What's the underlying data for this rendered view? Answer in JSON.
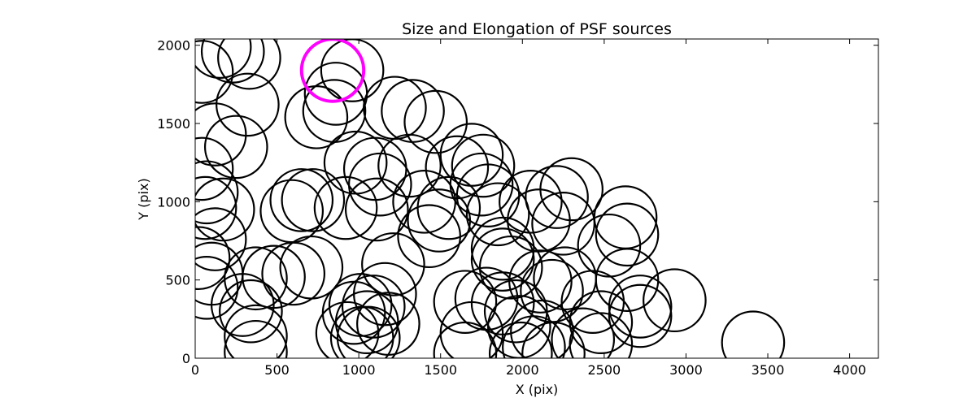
{
  "chart_data": {
    "type": "scatter",
    "title": "Size and Elongation of PSF sources",
    "xlabel": "X (pix)",
    "ylabel": "Y (pix)",
    "xlim": [
      0,
      4176
    ],
    "ylim": [
      0,
      2040
    ],
    "xticks": [
      0,
      500,
      1000,
      1500,
      2000,
      2500,
      3000,
      3500,
      4000
    ],
    "yticks": [
      0,
      500,
      1000,
      1500,
      2000
    ],
    "marker": "circle-outline",
    "marker_radius_data_x": 190,
    "grid": false,
    "legend": "none",
    "colors": {
      "normal": "#000000",
      "highlight": "#ff00ff"
    },
    "series": [
      {
        "points": [
          [
            40,
            1830
          ],
          [
            150,
            1990
          ],
          [
            230,
            1960
          ],
          [
            330,
            1920
          ],
          [
            320,
            1620
          ],
          [
            120,
            1430
          ],
          [
            250,
            1350
          ],
          [
            40,
            1210
          ],
          [
            70,
            1060
          ],
          [
            60,
            960
          ],
          [
            170,
            950
          ],
          [
            120,
            760
          ],
          [
            20,
            640
          ],
          [
            100,
            540
          ],
          [
            70,
            450
          ],
          [
            290,
            340
          ],
          [
            340,
            300
          ],
          [
            370,
            510
          ],
          [
            480,
            520
          ],
          [
            600,
            540
          ],
          [
            710,
            580
          ],
          [
            370,
            140
          ],
          [
            370,
            40
          ],
          [
            590,
            940
          ],
          [
            650,
            1010
          ],
          [
            720,
            1010
          ],
          [
            740,
            1540
          ],
          [
            850,
            1580
          ],
          [
            860,
            1690
          ],
          [
            960,
            1840
          ],
          [
            920,
            960
          ],
          [
            980,
            1250
          ],
          [
            1100,
            1210
          ],
          [
            1130,
            1110
          ],
          [
            1110,
            950
          ],
          [
            1220,
            1600
          ],
          [
            1330,
            1580
          ],
          [
            1470,
            1510
          ],
          [
            1310,
            1230
          ],
          [
            1400,
            1000
          ],
          [
            1430,
            780
          ],
          [
            1490,
            880
          ],
          [
            1550,
            960
          ],
          [
            1600,
            1220
          ],
          [
            1690,
            1300
          ],
          [
            1760,
            1230
          ],
          [
            1790,
            1040
          ],
          [
            1750,
            1110
          ],
          [
            2050,
            1000
          ],
          [
            2210,
            1030
          ],
          [
            2300,
            1080
          ],
          [
            2100,
            880
          ],
          [
            2250,
            860
          ],
          [
            2530,
            720
          ],
          [
            2630,
            900
          ],
          [
            2640,
            790
          ],
          [
            1850,
            920
          ],
          [
            1880,
            700
          ],
          [
            1880,
            630
          ],
          [
            1930,
            580
          ],
          [
            2110,
            490
          ],
          [
            2180,
            430
          ],
          [
            2260,
            510
          ],
          [
            2640,
            500
          ],
          [
            2720,
            330
          ],
          [
            2930,
            370
          ],
          [
            2430,
            360
          ],
          [
            2720,
            270
          ],
          [
            2480,
            230
          ],
          [
            2480,
            90
          ],
          [
            2370,
            120
          ],
          [
            2070,
            70
          ],
          [
            2190,
            30
          ],
          [
            1990,
            30
          ],
          [
            1650,
            30
          ],
          [
            1690,
            160
          ],
          [
            1650,
            360
          ],
          [
            1780,
            380
          ],
          [
            1880,
            350
          ],
          [
            1960,
            300
          ],
          [
            1980,
            200
          ],
          [
            2120,
            170
          ],
          [
            1210,
            600
          ],
          [
            1160,
            410
          ],
          [
            1180,
            220
          ],
          [
            1090,
            330
          ],
          [
            1010,
            340
          ],
          [
            970,
            290
          ],
          [
            1050,
            230
          ],
          [
            930,
            160
          ],
          [
            1020,
            130
          ],
          [
            1060,
            130
          ],
          [
            3410,
            100
          ]
        ]
      },
      {
        "name": "highlight",
        "points": [
          [
            840,
            1840
          ]
        ]
      }
    ]
  }
}
